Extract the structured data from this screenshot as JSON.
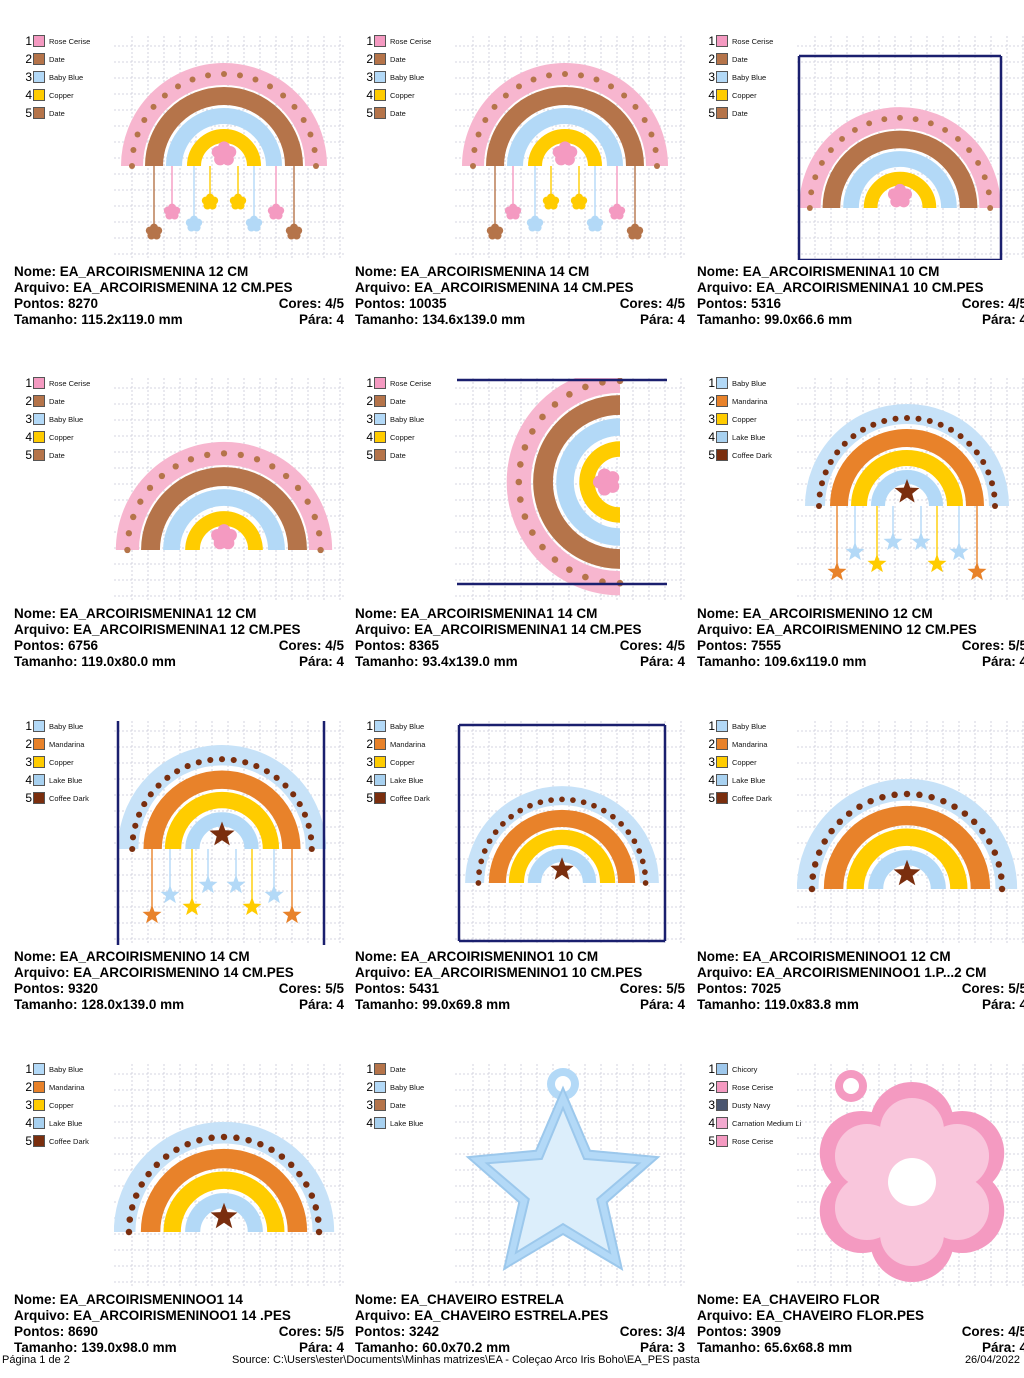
{
  "labels": {
    "name": "Nome:",
    "file": "Arquivo:",
    "stitches": "Pontos:",
    "colors": "Cores:",
    "size": "Tamanho:",
    "stops": "Pára:"
  },
  "designs": [
    {
      "name": "EA_ARCOIRISMENINA 12 CM",
      "file": "EA_ARCOIRISMENINA 12 CM.PES",
      "stitches": "8270",
      "colors": "4/5",
      "size": "115.2x119.0 mm",
      "stops": "4",
      "kind": "girl-hanging",
      "legend": [
        {
          "n": "1",
          "name": "Rose Cerise",
          "color": "#f49ac1"
        },
        {
          "n": "2",
          "name": "Date",
          "color": "#b5744a"
        },
        {
          "n": "3",
          "name": "Baby Blue",
          "color": "#b3d9f7"
        },
        {
          "n": "4",
          "name": "Copper",
          "color": "#ffcc00"
        },
        {
          "n": "5",
          "name": "Date",
          "color": "#b5744a"
        }
      ]
    },
    {
      "name": "EA_ARCOIRISMENINA 14 CM",
      "file": "EA_ARCOIRISMENINA 14 CM.PES",
      "stitches": "10035",
      "colors": "4/5",
      "size": "134.6x139.0 mm",
      "stops": "4",
      "kind": "girl-hanging",
      "legend": [
        {
          "n": "1",
          "name": "Rose Cerise",
          "color": "#f49ac1"
        },
        {
          "n": "2",
          "name": "Date",
          "color": "#b5744a"
        },
        {
          "n": "3",
          "name": "Baby Blue",
          "color": "#b3d9f7"
        },
        {
          "n": "4",
          "name": "Copper",
          "color": "#ffcc00"
        },
        {
          "n": "5",
          "name": "Date",
          "color": "#b5744a"
        }
      ]
    },
    {
      "name": "EA_ARCOIRISMENINA1 10 CM",
      "file": "EA_ARCOIRISMENINA1 10 CM.PES",
      "stitches": "5316",
      "colors": "4/5",
      "size": "99.0x66.6 mm",
      "stops": "4",
      "kind": "girl-framed",
      "legend": [
        {
          "n": "1",
          "name": "Rose Cerise",
          "color": "#f49ac1"
        },
        {
          "n": "2",
          "name": "Date",
          "color": "#b5744a"
        },
        {
          "n": "3",
          "name": "Baby Blue",
          "color": "#b3d9f7"
        },
        {
          "n": "4",
          "name": "Copper",
          "color": "#ffcc00"
        },
        {
          "n": "5",
          "name": "Date",
          "color": "#b5744a"
        }
      ]
    },
    {
      "name": "EA_ARCOIRISMENINA1 12 CM",
      "file": "EA_ARCOIRISMENINA1 12 CM.PES",
      "stitches": "6756",
      "colors": "4/5",
      "size": "119.0x80.0 mm",
      "stops": "4",
      "kind": "girl-plain",
      "legend": [
        {
          "n": "1",
          "name": "Rose Cerise",
          "color": "#f49ac1"
        },
        {
          "n": "2",
          "name": "Date",
          "color": "#b5744a"
        },
        {
          "n": "3",
          "name": "Baby Blue",
          "color": "#b3d9f7"
        },
        {
          "n": "4",
          "name": "Copper",
          "color": "#ffcc00"
        },
        {
          "n": "5",
          "name": "Date",
          "color": "#b5744a"
        }
      ]
    },
    {
      "name": "EA_ARCOIRISMENINA1 14 CM",
      "file": "EA_ARCOIRISMENINA1 14 CM.PES",
      "stitches": "8365",
      "colors": "4/5",
      "size": "93.4x139.0 mm",
      "stops": "4",
      "kind": "girl-rotated",
      "legend": [
        {
          "n": "1",
          "name": "Rose Cerise",
          "color": "#f49ac1"
        },
        {
          "n": "2",
          "name": "Date",
          "color": "#b5744a"
        },
        {
          "n": "3",
          "name": "Baby Blue",
          "color": "#b3d9f7"
        },
        {
          "n": "4",
          "name": "Copper",
          "color": "#ffcc00"
        },
        {
          "n": "5",
          "name": "Date",
          "color": "#b5744a"
        }
      ]
    },
    {
      "name": "EA_ARCOIRISMENINO 12 CM",
      "file": "EA_ARCOIRISMENINO 12 CM.PES",
      "stitches": "7555",
      "colors": "5/5",
      "size": "109.6x119.0 mm",
      "stops": "4",
      "kind": "boy-hanging",
      "legend": [
        {
          "n": "1",
          "name": "Baby Blue",
          "color": "#b3d9f7"
        },
        {
          "n": "2",
          "name": "Mandarina",
          "color": "#e8822a"
        },
        {
          "n": "3",
          "name": "Copper",
          "color": "#ffcc00"
        },
        {
          "n": "4",
          "name": "Lake Blue",
          "color": "#a8d1f0"
        },
        {
          "n": "5",
          "name": "Coffee Dark",
          "color": "#7a2e0e"
        }
      ]
    },
    {
      "name": "EA_ARCOIRISMENINO 14 CM",
      "file": "EA_ARCOIRISMENINO 14 CM.PES",
      "stitches": "9320",
      "colors": "5/5",
      "size": "128.0x139.0 mm",
      "stops": "4",
      "kind": "boy-hanging-framed",
      "legend": [
        {
          "n": "1",
          "name": "Baby Blue",
          "color": "#b3d9f7"
        },
        {
          "n": "2",
          "name": "Mandarina",
          "color": "#e8822a"
        },
        {
          "n": "3",
          "name": "Copper",
          "color": "#ffcc00"
        },
        {
          "n": "4",
          "name": "Lake Blue",
          "color": "#a8d1f0"
        },
        {
          "n": "5",
          "name": "Coffee Dark",
          "color": "#7a2e0e"
        }
      ]
    },
    {
      "name": "EA_ARCOIRISMENINO1 10 CM",
      "file": "EA_ARCOIRISMENINO1 10 CM.PES",
      "stitches": "5431",
      "colors": "5/5",
      "size": "99.0x69.8 mm",
      "stops": "4",
      "kind": "boy-framed",
      "legend": [
        {
          "n": "1",
          "name": "Baby Blue",
          "color": "#b3d9f7"
        },
        {
          "n": "2",
          "name": "Mandarina",
          "color": "#e8822a"
        },
        {
          "n": "3",
          "name": "Copper",
          "color": "#ffcc00"
        },
        {
          "n": "4",
          "name": "Lake Blue",
          "color": "#a8d1f0"
        },
        {
          "n": "5",
          "name": "Coffee Dark",
          "color": "#7a2e0e"
        }
      ]
    },
    {
      "name": "EA_ARCOIRISMENINOO1 12 CM",
      "file": "EA_ARCOIRISMENINOO1 1.P...2 CM",
      "stitches": "7025",
      "colors": "5/5",
      "size": "119.0x83.8 mm",
      "stops": "4",
      "kind": "boy-plain",
      "legend": [
        {
          "n": "1",
          "name": "Baby Blue",
          "color": "#b3d9f7"
        },
        {
          "n": "2",
          "name": "Mandarina",
          "color": "#e8822a"
        },
        {
          "n": "3",
          "name": "Copper",
          "color": "#ffcc00"
        },
        {
          "n": "4",
          "name": "Lake Blue",
          "color": "#a8d1f0"
        },
        {
          "n": "5",
          "name": "Coffee Dark",
          "color": "#7a2e0e"
        }
      ]
    },
    {
      "name": "EA_ARCOIRISMENINOO1 14",
      "file": "EA_ARCOIRISMENINOO1 14 .PES",
      "stitches": "8690",
      "colors": "5/5",
      "size": "139.0x98.0 mm",
      "stops": "4",
      "kind": "boy-plain",
      "legend": [
        {
          "n": "1",
          "name": "Baby Blue",
          "color": "#b3d9f7"
        },
        {
          "n": "2",
          "name": "Mandarina",
          "color": "#e8822a"
        },
        {
          "n": "3",
          "name": "Copper",
          "color": "#ffcc00"
        },
        {
          "n": "4",
          "name": "Lake Blue",
          "color": "#a8d1f0"
        },
        {
          "n": "5",
          "name": "Coffee Dark",
          "color": "#7a2e0e"
        }
      ]
    },
    {
      "name": "EA_CHAVEIRO ESTRELA",
      "file": "EA_CHAVEIRO ESTRELA.PES",
      "stitches": "3242",
      "colors": "3/4",
      "size": "60.0x70.2 mm",
      "stops": "3",
      "kind": "star-keychain",
      "legend": [
        {
          "n": "1",
          "name": "Date",
          "color": "#b5744a"
        },
        {
          "n": "2",
          "name": "Baby Blue",
          "color": "#b3d9f7"
        },
        {
          "n": "3",
          "name": "Date",
          "color": "#b5744a"
        },
        {
          "n": "4",
          "name": "Lake Blue",
          "color": "#a8d1f0"
        }
      ]
    },
    {
      "name": "EA_CHAVEIRO FLOR",
      "file": "EA_CHAVEIRO FLOR.PES",
      "stitches": "3909",
      "colors": "4/5",
      "size": "65.6x68.8 mm",
      "stops": "4",
      "kind": "flower-keychain",
      "legend": [
        {
          "n": "1",
          "name": "Chicory",
          "color": "#9fc8ec"
        },
        {
          "n": "2",
          "name": "Rose Cerise",
          "color": "#f49ac1"
        },
        {
          "n": "3",
          "name": "Dusty Navy",
          "color": "#4a5670"
        },
        {
          "n": "4",
          "name": "Carnation Medium Li",
          "color": "#f2a9cf"
        },
        {
          "n": "5",
          "name": "Rose Cerise",
          "color": "#f49ac1"
        }
      ]
    }
  ],
  "footer": {
    "page": "Página 1 de 2",
    "source": "Source: C:\\Users\\ester\\Documents\\Minhas matrizes\\EA - Coleçao Arco Iris Boho\\EA_PES pasta",
    "date": "26/04/2022"
  },
  "colors": {
    "grid": "#c9c9d8",
    "frame": "#1a1f6e"
  }
}
